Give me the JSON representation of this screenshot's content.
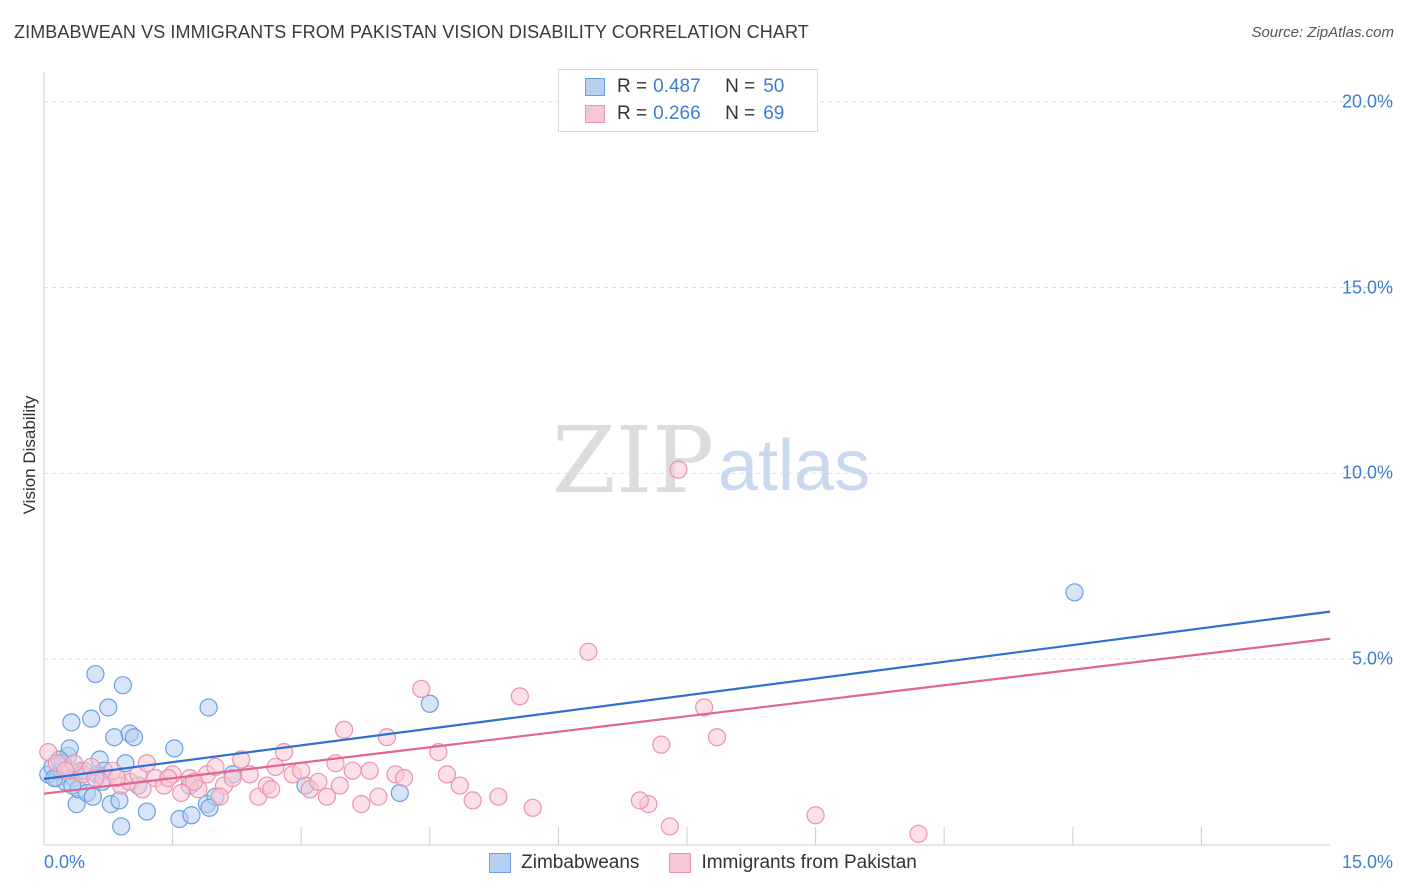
{
  "title": "ZIMBABWEAN VS IMMIGRANTS FROM PAKISTAN VISION DISABILITY CORRELATION CHART",
  "source": "Source: ZipAtlas.com",
  "watermark": {
    "zip": "ZIP",
    "atlas": "atlas"
  },
  "legend": {
    "r_label": "R =",
    "n_label": "N =",
    "series": [
      {
        "r": "0.487",
        "n": "50"
      },
      {
        "r": "0.266",
        "n": "69"
      }
    ]
  },
  "colors": {
    "blue_fill": "#b7d0f2",
    "blue_stroke": "#6d9fdf",
    "blue_line": "#2f6fd0",
    "pink_fill": "#f8c7d6",
    "pink_stroke": "#ec93b0",
    "pink_line": "#e2658f",
    "grid": "#dddddd",
    "axis_text": "#3d7dd0"
  },
  "chart_data": {
    "type": "scatter",
    "title": "ZIMBABWEAN VS IMMIGRANTS FROM PAKISTAN VISION DISABILITY CORRELATION CHART",
    "xlabel": "",
    "ylabel": "Vision Disability",
    "xlim": [
      0,
      15
    ],
    "ylim": [
      0,
      20.8
    ],
    "x_tick_labels": {
      "min": "0.0%",
      "max": "15.0%"
    },
    "y_ticks": [
      {
        "value": 5,
        "label": "5.0%"
      },
      {
        "value": 10,
        "label": "10.0%"
      },
      {
        "value": 15,
        "label": "15.0%"
      },
      {
        "value": 20,
        "label": "20.0%"
      }
    ],
    "x_grid_minor": [
      1.5,
      3.0,
      4.5,
      6.0,
      7.5,
      9.0,
      10.5,
      12.0,
      13.5
    ],
    "series": [
      {
        "name": "Zimbabweans",
        "r": 0.487,
        "n": 50,
        "trend": {
          "x": [
            0,
            15
          ],
          "y": [
            1.78,
            6.28
          ]
        },
        "points": [
          [
            0.05,
            1.9
          ],
          [
            0.1,
            2.1
          ],
          [
            0.15,
            1.8
          ],
          [
            0.2,
            2.0
          ],
          [
            0.25,
            1.7
          ],
          [
            0.28,
            2.4
          ],
          [
            0.3,
            2.6
          ],
          [
            0.32,
            3.3
          ],
          [
            0.35,
            1.8
          ],
          [
            0.38,
            1.1
          ],
          [
            0.4,
            1.5
          ],
          [
            0.42,
            2.0
          ],
          [
            0.45,
            1.9
          ],
          [
            0.5,
            1.4
          ],
          [
            0.55,
            3.4
          ],
          [
            0.6,
            4.6
          ],
          [
            0.62,
            1.9
          ],
          [
            0.65,
            2.3
          ],
          [
            0.7,
            2.0
          ],
          [
            0.75,
            3.7
          ],
          [
            0.78,
            1.1
          ],
          [
            0.82,
            2.9
          ],
          [
            0.9,
            0.5
          ],
          [
            0.92,
            4.3
          ],
          [
            0.95,
            2.2
          ],
          [
            1.0,
            3.0
          ],
          [
            1.05,
            2.9
          ],
          [
            1.1,
            1.6
          ],
          [
            1.2,
            0.9
          ],
          [
            1.52,
            2.6
          ],
          [
            1.58,
            0.7
          ],
          [
            1.7,
            1.6
          ],
          [
            1.72,
            0.8
          ],
          [
            1.9,
            1.1
          ],
          [
            1.92,
            3.7
          ],
          [
            2.0,
            1.3
          ],
          [
            2.2,
            1.9
          ],
          [
            3.05,
            1.6
          ],
          [
            4.15,
            1.4
          ],
          [
            4.5,
            3.8
          ],
          [
            12.02,
            6.8
          ],
          [
            0.12,
            1.8
          ],
          [
            0.22,
            2.2
          ],
          [
            0.33,
            1.6
          ],
          [
            0.47,
            2.0
          ],
          [
            0.57,
            1.3
          ],
          [
            0.88,
            1.2
          ],
          [
            1.93,
            1.0
          ],
          [
            0.18,
            2.3
          ],
          [
            0.68,
            1.7
          ]
        ]
      },
      {
        "name": "Immigrants from Pakistan",
        "r": 0.266,
        "n": 69,
        "trend": {
          "x": [
            0,
            15
          ],
          "y": [
            1.38,
            5.55
          ]
        },
        "points": [
          [
            0.05,
            2.5
          ],
          [
            0.15,
            2.2
          ],
          [
            0.3,
            2.0
          ],
          [
            0.45,
            1.9
          ],
          [
            0.55,
            2.1
          ],
          [
            0.7,
            1.8
          ],
          [
            0.8,
            2.0
          ],
          [
            0.9,
            1.6
          ],
          [
            1.0,
            1.7
          ],
          [
            1.1,
            1.9
          ],
          [
            1.2,
            2.2
          ],
          [
            1.3,
            1.8
          ],
          [
            1.4,
            1.6
          ],
          [
            1.5,
            1.9
          ],
          [
            1.6,
            1.4
          ],
          [
            1.7,
            1.8
          ],
          [
            1.8,
            1.5
          ],
          [
            1.9,
            1.9
          ],
          [
            2.0,
            2.1
          ],
          [
            2.1,
            1.6
          ],
          [
            2.2,
            1.8
          ],
          [
            2.3,
            2.3
          ],
          [
            2.4,
            1.9
          ],
          [
            2.5,
            1.3
          ],
          [
            2.6,
            1.6
          ],
          [
            2.7,
            2.1
          ],
          [
            2.8,
            2.5
          ],
          [
            2.9,
            1.9
          ],
          [
            3.0,
            2.0
          ],
          [
            3.1,
            1.5
          ],
          [
            3.2,
            1.7
          ],
          [
            3.3,
            1.3
          ],
          [
            3.4,
            2.2
          ],
          [
            3.5,
            3.1
          ],
          [
            3.6,
            2.0
          ],
          [
            3.7,
            1.1
          ],
          [
            3.8,
            2.0
          ],
          [
            3.9,
            1.3
          ],
          [
            4.0,
            2.9
          ],
          [
            4.1,
            1.9
          ],
          [
            4.4,
            4.2
          ],
          [
            4.6,
            2.5
          ],
          [
            4.7,
            1.9
          ],
          [
            4.85,
            1.6
          ],
          [
            5.0,
            1.2
          ],
          [
            5.3,
            1.3
          ],
          [
            5.55,
            4.0
          ],
          [
            5.7,
            1.0
          ],
          [
            6.35,
            5.2
          ],
          [
            7.05,
            1.1
          ],
          [
            7.2,
            2.7
          ],
          [
            7.3,
            0.5
          ],
          [
            7.4,
            10.1
          ],
          [
            7.7,
            3.7
          ],
          [
            7.85,
            2.9
          ],
          [
            9.0,
            0.8
          ],
          [
            10.2,
            0.3
          ],
          [
            6.95,
            1.2
          ],
          [
            0.35,
            2.2
          ],
          [
            0.6,
            1.8
          ],
          [
            1.15,
            1.5
          ],
          [
            1.75,
            1.7
          ],
          [
            2.05,
            1.3
          ],
          [
            2.65,
            1.5
          ],
          [
            3.45,
            1.6
          ],
          [
            4.2,
            1.8
          ],
          [
            0.25,
            2.0
          ],
          [
            0.85,
            1.8
          ],
          [
            1.45,
            1.8
          ]
        ]
      }
    ],
    "legend_labels": [
      "Zimbabweans",
      "Immigrants from Pakistan"
    ]
  }
}
